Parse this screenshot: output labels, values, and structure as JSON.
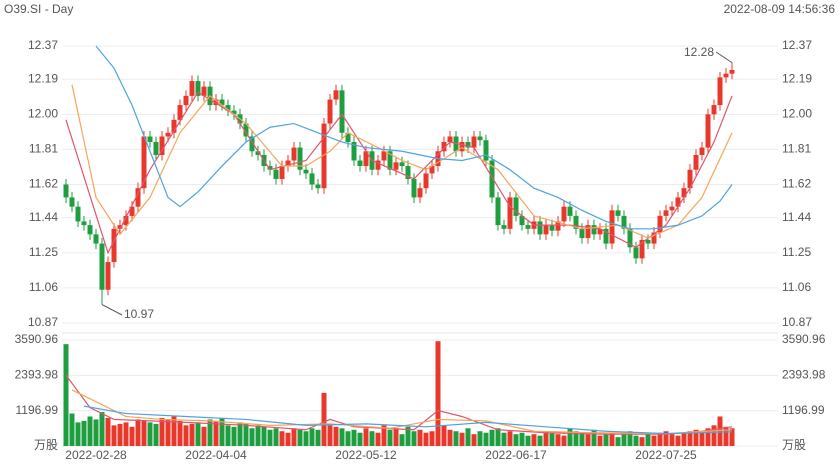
{
  "chart_data": {
    "type": "candlestick",
    "title": "O39.SI - Day",
    "subtitle": "2022-08-09 14:56:36",
    "up_color": "#e8382c",
    "down_color": "#1e9e3f",
    "grid": true,
    "categories": [
      null,
      null,
      null,
      null,
      null,
      "2022-02-28",
      null,
      null,
      null,
      null,
      null,
      null,
      null,
      null,
      null,
      null,
      null,
      null,
      null,
      null,
      null,
      null,
      null,
      null,
      null,
      "2022-04-04",
      null,
      null,
      null,
      null,
      null,
      null,
      null,
      null,
      null,
      null,
      null,
      null,
      null,
      null,
      null,
      null,
      null,
      null,
      null,
      null,
      null,
      null,
      null,
      null,
      "2022-05-12",
      null,
      null,
      null,
      null,
      null,
      null,
      null,
      null,
      null,
      null,
      null,
      null,
      null,
      null,
      null,
      null,
      null,
      null,
      null,
      null,
      null,
      null,
      null,
      null,
      "2022-06-17",
      null,
      null,
      null,
      null,
      null,
      null,
      null,
      null,
      null,
      null,
      null,
      null,
      null,
      null,
      null,
      null,
      null,
      null,
      null,
      null,
      null,
      null,
      null,
      null,
      "2022-07-25",
      null,
      null,
      null,
      null,
      null,
      null,
      null,
      null,
      null,
      null,
      null
    ],
    "open": [
      11.62,
      11.55,
      11.5,
      11.42,
      11.4,
      11.35,
      11.3,
      11.05,
      11.2,
      11.38,
      11.4,
      11.45,
      11.5,
      11.6,
      11.88,
      11.85,
      11.78,
      11.88,
      11.9,
      11.97,
      12.05,
      12.1,
      12.18,
      12.1,
      12.15,
      12.05,
      12.08,
      12.05,
      12.02,
      12.0,
      11.95,
      11.88,
      11.8,
      11.78,
      11.72,
      11.7,
      11.65,
      11.72,
      11.75,
      11.82,
      11.7,
      11.68,
      11.62,
      11.6,
      11.95,
      12.08,
      12.13,
      11.9,
      11.85,
      11.75,
      11.72,
      11.8,
      11.7,
      11.75,
      11.8,
      11.7,
      11.74,
      11.72,
      11.65,
      11.55,
      11.6,
      11.68,
      11.72,
      11.8,
      11.85,
      11.88,
      11.8,
      11.85,
      11.82,
      11.88,
      11.86,
      11.75,
      11.55,
      11.4,
      11.38,
      11.55,
      11.45,
      11.4,
      11.38,
      11.42,
      11.35,
      11.4,
      11.37,
      11.42,
      11.5,
      11.45,
      11.38,
      11.33,
      11.4,
      11.35,
      11.38,
      11.3,
      11.48,
      11.45,
      11.38,
      11.28,
      11.22,
      11.32,
      11.3,
      11.36,
      11.45,
      11.48,
      11.5,
      11.55,
      11.6,
      11.7,
      11.78,
      11.82,
      12.0,
      12.05,
      12.2,
      12.22
    ],
    "high": [
      11.65,
      11.58,
      11.53,
      11.45,
      11.43,
      11.38,
      11.33,
      11.23,
      11.41,
      11.43,
      11.48,
      11.53,
      11.63,
      11.91,
      11.91,
      11.88,
      11.91,
      11.93,
      12.0,
      12.08,
      12.13,
      12.21,
      12.21,
      12.18,
      12.18,
      12.11,
      12.11,
      12.08,
      12.05,
      12.03,
      11.98,
      11.91,
      11.83,
      11.81,
      11.75,
      11.73,
      11.75,
      11.78,
      11.85,
      11.85,
      11.73,
      11.71,
      11.65,
      11.98,
      12.11,
      12.16,
      12.16,
      11.93,
      11.88,
      11.78,
      11.83,
      11.83,
      11.78,
      11.83,
      11.83,
      11.77,
      11.77,
      11.75,
      11.68,
      11.63,
      11.71,
      11.75,
      11.83,
      11.88,
      11.91,
      11.91,
      11.88,
      11.88,
      11.91,
      11.91,
      11.89,
      11.78,
      11.58,
      11.43,
      11.58,
      11.58,
      11.48,
      11.43,
      11.45,
      11.45,
      11.43,
      11.43,
      11.45,
      11.53,
      11.53,
      11.48,
      11.41,
      11.43,
      11.43,
      11.41,
      11.41,
      11.51,
      11.51,
      11.48,
      11.41,
      11.31,
      11.35,
      11.35,
      11.39,
      11.48,
      11.51,
      11.53,
      11.58,
      11.63,
      11.73,
      11.81,
      11.85,
      12.03,
      12.08,
      12.23,
      12.25,
      12.28
    ],
    "low": [
      11.52,
      11.47,
      11.39,
      11.37,
      11.32,
      11.27,
      10.97,
      11.02,
      11.17,
      11.35,
      11.37,
      11.42,
      11.47,
      11.57,
      11.82,
      11.75,
      11.75,
      11.85,
      11.87,
      11.94,
      12.02,
      12.07,
      12.07,
      12.07,
      12.02,
      12.02,
      12.02,
      11.99,
      11.97,
      11.92,
      11.85,
      11.77,
      11.75,
      11.69,
      11.67,
      11.62,
      11.62,
      11.69,
      11.72,
      11.67,
      11.65,
      11.59,
      11.57,
      11.57,
      11.92,
      12.05,
      11.87,
      11.82,
      11.72,
      11.69,
      11.69,
      11.67,
      11.67,
      11.72,
      11.67,
      11.67,
      11.69,
      11.62,
      11.52,
      11.52,
      11.57,
      11.65,
      11.69,
      11.77,
      11.82,
      11.77,
      11.77,
      11.79,
      11.79,
      11.83,
      11.72,
      11.52,
      11.37,
      11.35,
      11.35,
      11.42,
      11.37,
      11.35,
      11.35,
      11.32,
      11.32,
      11.34,
      11.34,
      11.39,
      11.42,
      11.35,
      11.3,
      11.3,
      11.32,
      11.32,
      11.27,
      11.27,
      11.42,
      11.35,
      11.25,
      11.19,
      11.19,
      11.27,
      11.27,
      11.33,
      11.42,
      11.45,
      11.47,
      11.52,
      11.57,
      11.67,
      11.75,
      11.79,
      11.97,
      12.02,
      12.17,
      12.19
    ],
    "close": [
      11.55,
      11.5,
      11.42,
      11.4,
      11.35,
      11.3,
      11.05,
      11.2,
      11.38,
      11.4,
      11.45,
      11.5,
      11.6,
      11.88,
      11.85,
      11.78,
      11.88,
      11.9,
      11.97,
      12.05,
      12.1,
      12.18,
      12.1,
      12.15,
      12.05,
      12.08,
      12.05,
      12.02,
      12.0,
      11.95,
      11.88,
      11.8,
      11.78,
      11.72,
      11.7,
      11.65,
      11.72,
      11.75,
      11.82,
      11.7,
      11.68,
      11.62,
      11.6,
      11.95,
      12.08,
      12.13,
      11.9,
      11.85,
      11.75,
      11.72,
      11.8,
      11.7,
      11.75,
      11.8,
      11.7,
      11.74,
      11.72,
      11.65,
      11.55,
      11.6,
      11.68,
      11.72,
      11.8,
      11.85,
      11.88,
      11.8,
      11.85,
      11.82,
      11.88,
      11.86,
      11.75,
      11.55,
      11.4,
      11.38,
      11.55,
      11.45,
      11.4,
      11.38,
      11.42,
      11.35,
      11.4,
      11.37,
      11.42,
      11.5,
      11.45,
      11.38,
      11.33,
      11.4,
      11.35,
      11.38,
      11.3,
      11.48,
      11.45,
      11.38,
      11.28,
      11.22,
      11.32,
      11.3,
      11.36,
      11.45,
      11.48,
      11.5,
      11.55,
      11.6,
      11.7,
      11.78,
      11.82,
      12.0,
      12.05,
      12.2,
      12.22,
      12.24
    ],
    "ylim": [
      10.87,
      12.37
    ],
    "yticks": [
      12.37,
      12.19,
      {
        "value": 12,
        "label": "12.00"
      },
      11.81,
      11.62,
      11.44,
      11.25,
      11.06,
      10.87
    ],
    "lines": [
      {
        "color": "#e2566b",
        "x": [
          0,
          7,
          14,
          22,
          28,
          34,
          40,
          46,
          51,
          58,
          64,
          68,
          74,
          78,
          84,
          89,
          95,
          100,
          104,
          108,
          111
        ],
        "values": [
          11.97,
          11.25,
          11.7,
          12.12,
          12.0,
          11.7,
          11.75,
          12.0,
          11.75,
          11.65,
          11.85,
          11.82,
          11.5,
          11.4,
          11.4,
          11.38,
          11.28,
          11.4,
          11.6,
          11.85,
          12.1
        ]
      },
      {
        "color": "#f5a55a",
        "x": [
          1,
          5,
          9,
          14,
          19,
          24,
          30,
          36,
          40,
          44,
          47,
          52,
          56,
          60,
          66,
          72,
          78,
          86,
          92,
          97,
          102,
          106,
          111
        ],
        "values": [
          12.16,
          11.55,
          11.35,
          11.55,
          11.9,
          12.1,
          11.95,
          11.72,
          11.72,
          11.8,
          11.9,
          11.82,
          11.75,
          11.7,
          11.82,
          11.7,
          11.45,
          11.38,
          11.4,
          11.33,
          11.4,
          11.55,
          11.9
        ]
      },
      {
        "color": "#4da3e0",
        "x": [
          5,
          8,
          11,
          14,
          17,
          19,
          22,
          26,
          30,
          34,
          38,
          42,
          46,
          50,
          56,
          62,
          66,
          70,
          74,
          78,
          82,
          86,
          90,
          94,
          98,
          102,
          106,
          109,
          111
        ],
        "values": [
          12.37,
          12.25,
          12.05,
          11.8,
          11.55,
          11.5,
          11.58,
          11.72,
          11.85,
          11.93,
          11.95,
          11.9,
          11.85,
          11.82,
          11.8,
          11.76,
          11.75,
          11.78,
          11.7,
          11.6,
          11.55,
          11.48,
          11.42,
          11.38,
          11.38,
          11.4,
          11.45,
          11.53,
          11.62
        ]
      }
    ],
    "volume": {
      "values": [
        3450,
        1100,
        800,
        850,
        1000,
        900,
        1150,
        950,
        700,
        750,
        800,
        650,
        900,
        850,
        800,
        750,
        950,
        900,
        1000,
        850,
        700,
        750,
        800,
        650,
        900,
        850,
        950,
        700,
        650,
        800,
        750,
        600,
        700,
        650,
        550,
        600,
        500,
        450,
        600,
        550,
        500,
        600,
        550,
        1800,
        700,
        650,
        600,
        500,
        550,
        450,
        600,
        500,
        450,
        700,
        550,
        600,
        400,
        650,
        500,
        550,
        450,
        500,
        3550,
        700,
        550,
        500,
        450,
        600,
        400,
        500,
        450,
        550,
        600,
        450,
        500,
        400,
        450,
        350,
        400,
        350,
        500,
        450,
        400,
        350,
        600,
        500,
        450,
        400,
        550,
        350,
        400,
        450,
        300,
        400,
        500,
        350,
        300,
        400,
        350,
        450,
        500,
        400,
        350,
        450,
        500,
        550,
        450,
        600,
        700,
        1000,
        650,
        600
      ],
      "ylim": [
        0,
        3590.96
      ],
      "yticks": [
        {
          "value": 0,
          "label": "万股"
        },
        1196.99,
        2393.98,
        3590.96
      ],
      "lines": [
        {
          "color": "#e2566b",
          "x": [
            0,
            4,
            8,
            14,
            20,
            30,
            40,
            44,
            48,
            58,
            62,
            66,
            72,
            80,
            90,
            100,
            106,
            111
          ],
          "values": [
            2400,
            1300,
            900,
            850,
            800,
            700,
            550,
            900,
            650,
            550,
            1200,
            1000,
            550,
            450,
            400,
            400,
            500,
            650
          ]
        },
        {
          "color": "#f5a55a",
          "x": [
            1,
            6,
            10,
            16,
            24,
            34,
            44,
            54,
            62,
            70,
            78,
            88,
            100,
            111
          ],
          "values": [
            1900,
            1400,
            1000,
            900,
            850,
            700,
            750,
            600,
            900,
            850,
            500,
            450,
            420,
            550
          ]
        },
        {
          "color": "#4da3e0",
          "x": [
            3,
            10,
            20,
            30,
            40,
            50,
            60,
            70,
            80,
            90,
            100,
            111
          ],
          "values": [
            1350,
            1100,
            1000,
            900,
            700,
            750,
            650,
            800,
            650,
            500,
            420,
            480
          ]
        }
      ]
    }
  }
}
